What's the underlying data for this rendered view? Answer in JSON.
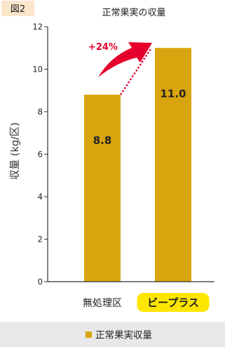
{
  "figure_label": "図2",
  "chart_data": {
    "type": "bar",
    "title": "正常果実の収量",
    "ylabel": "収量 (kg/区)",
    "categories": [
      "無処理区",
      "ビープラス"
    ],
    "series": [
      {
        "name": "正常果実収量",
        "values": [
          8.8,
          11.0
        ],
        "color": "#d9a50e"
      }
    ],
    "data_labels": [
      "8.8",
      "11.0"
    ],
    "ylim": [
      0,
      12
    ],
    "yticks": [
      0,
      2,
      4,
      6,
      8,
      10,
      12
    ],
    "grid": false,
    "legend": {
      "position": "bottom"
    },
    "annotation": {
      "text": "+24%",
      "color": "#e5002d"
    },
    "highlight": {
      "category_index": 1,
      "color": "#ffe600"
    }
  }
}
